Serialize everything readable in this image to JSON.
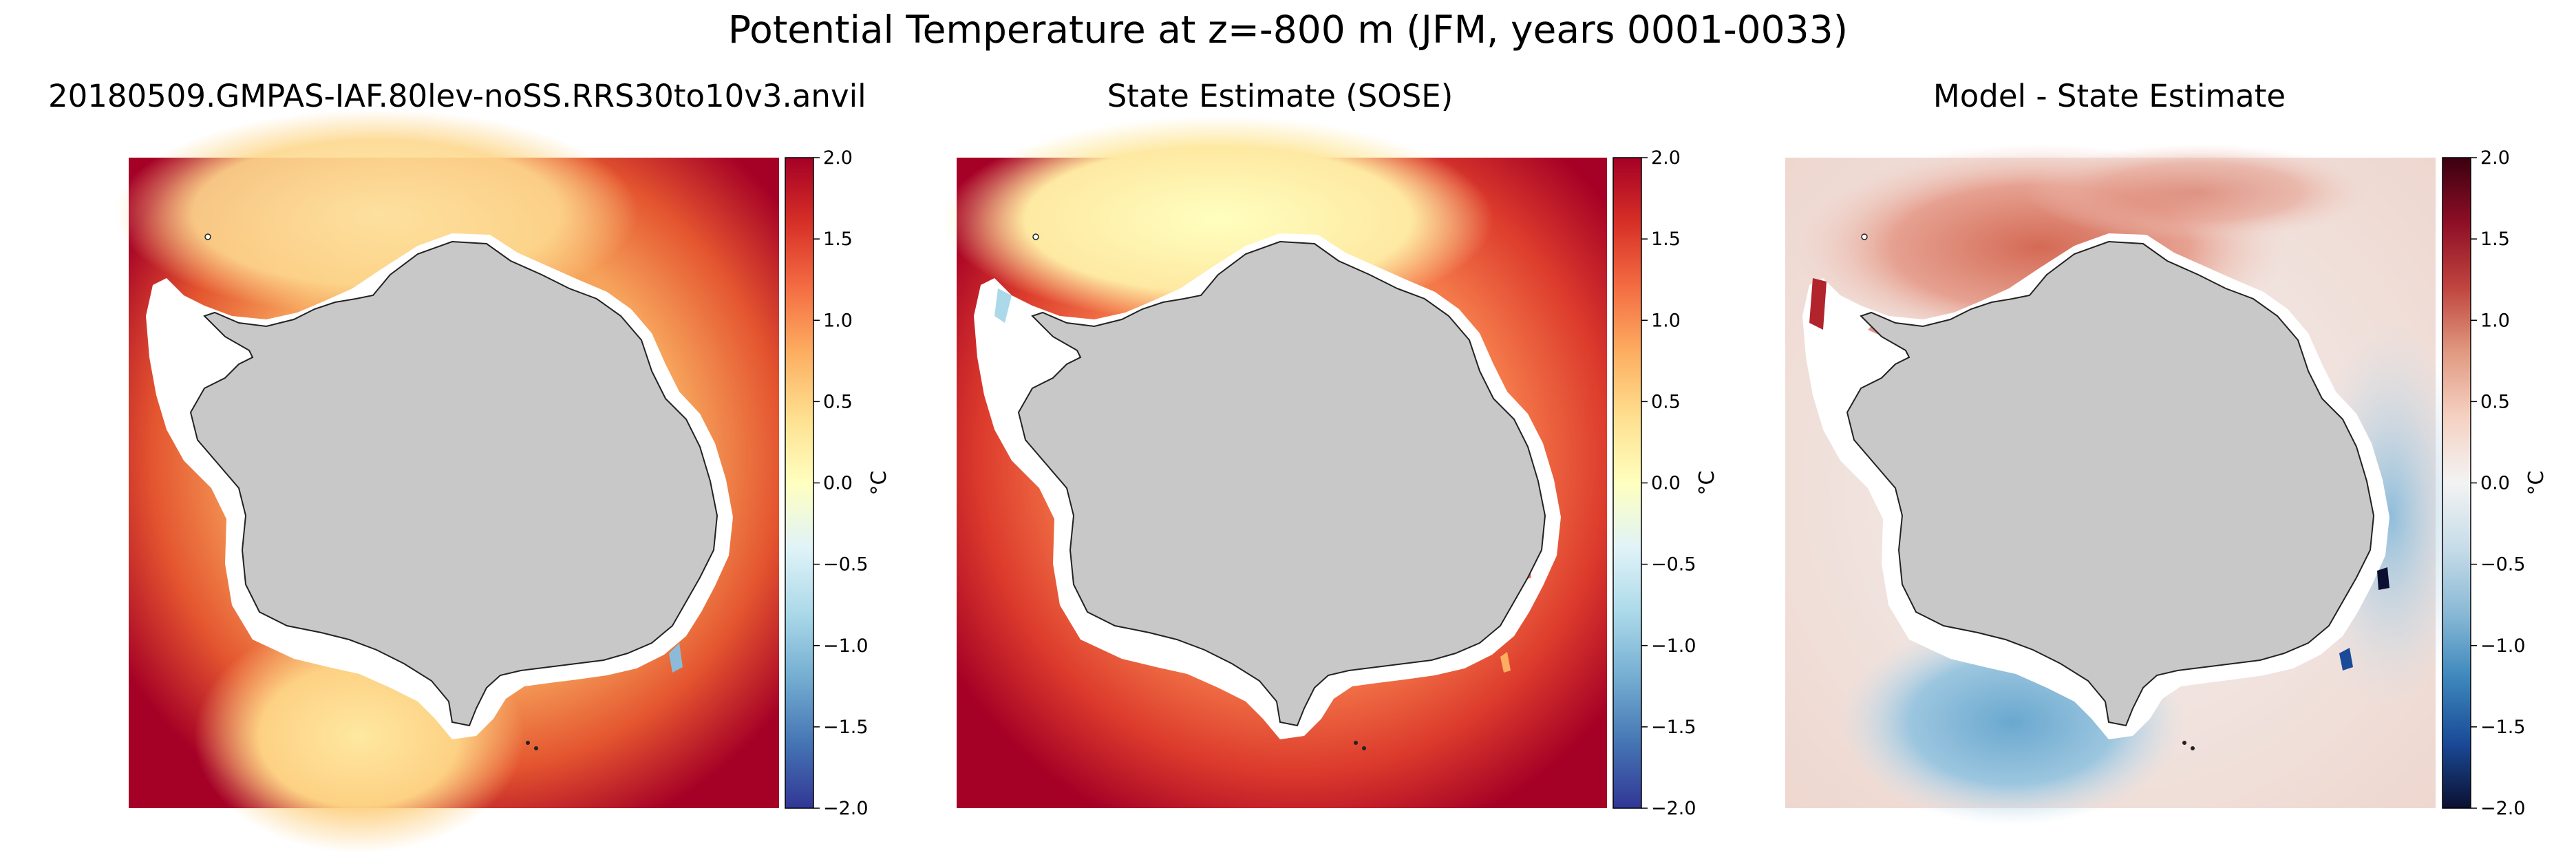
{
  "title": "Potential Temperature at z=-800 m (JFM, years 0001-0033)",
  "chart_data": [
    {
      "type": "heatmap",
      "title": "20180509.GMPAS-IAF.80lev-noSS.RRS30to10v3.anvil",
      "colormap": "RdYlBu_r",
      "colorbar": {
        "label": "°C",
        "range": [
          -2.0,
          2.0
        ],
        "ticks": [
          2.0,
          1.5,
          1.0,
          0.5,
          0.0,
          -0.5,
          -1.0,
          -1.5,
          -2.0
        ]
      },
      "tick_labels": [
        "2.0",
        "1.5",
        "1.0",
        "0.5",
        "0.0",
        "−0.5",
        "−1.0",
        "−1.5",
        "−2.0"
      ],
      "land_color": "#c8c8c8"
    },
    {
      "type": "heatmap",
      "title": "State Estimate (SOSE)",
      "colormap": "RdYlBu_r",
      "colorbar": {
        "label": "°C",
        "range": [
          -2.0,
          2.0
        ],
        "ticks": [
          2.0,
          1.5,
          1.0,
          0.5,
          0.0,
          -0.5,
          -1.0,
          -1.5,
          -2.0
        ]
      },
      "tick_labels": [
        "2.0",
        "1.5",
        "1.0",
        "0.5",
        "0.0",
        "−0.5",
        "−1.0",
        "−1.5",
        "−2.0"
      ],
      "land_color": "#c8c8c8"
    },
    {
      "type": "heatmap",
      "title": "Model - State Estimate",
      "colormap": "RdBu_r",
      "colorbar": {
        "label": "°C",
        "range": [
          -2.0,
          2.0
        ],
        "ticks": [
          2.0,
          1.5,
          1.0,
          0.5,
          0.0,
          -0.5,
          -1.0,
          -1.5,
          -2.0
        ]
      },
      "tick_labels": [
        "2.0",
        "1.5",
        "1.0",
        "0.5",
        "0.0",
        "−0.5",
        "−1.0",
        "−1.5",
        "−2.0"
      ],
      "land_color": "#c8c8c8"
    }
  ]
}
